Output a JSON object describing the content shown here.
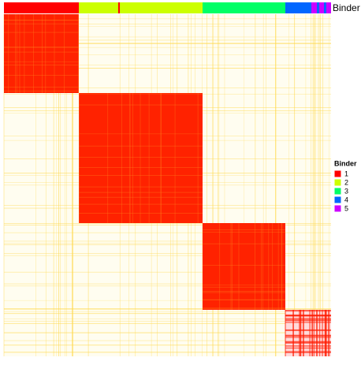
{
  "chart_data": {
    "type": "heatmap",
    "annotation_label": "Binder",
    "legend_title": "Binder",
    "series": [
      {
        "name": "1",
        "color": "#ff0000"
      },
      {
        "name": "2",
        "color": "#ccff00"
      },
      {
        "name": "3",
        "color": "#00ff66"
      },
      {
        "name": "4",
        "color": "#0066ff"
      },
      {
        "name": "5",
        "color": "#cc00ff"
      }
    ]
  }
}
